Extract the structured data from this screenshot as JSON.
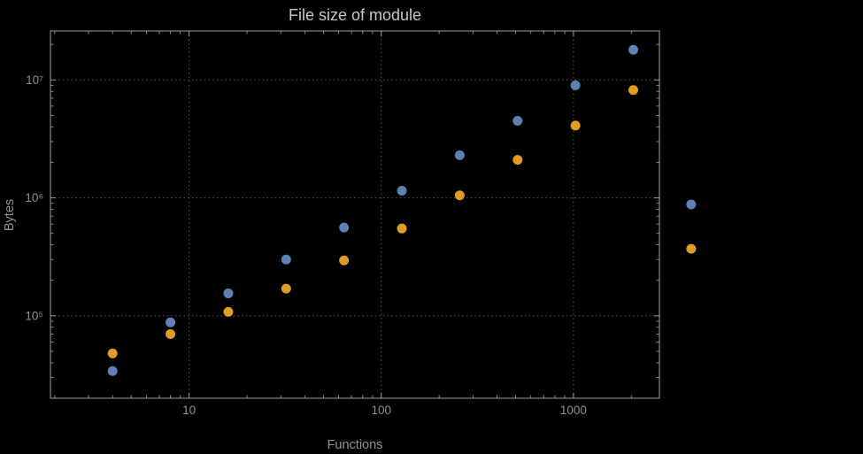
{
  "chart_data": {
    "type": "scatter",
    "title": "File size of module",
    "xlabel": "Functions",
    "ylabel": "Bytes",
    "x_scale": "log",
    "y_scale": "log",
    "x_range": [
      1.9,
      2800
    ],
    "y_range": [
      20000,
      26000000
    ],
    "grid": true,
    "legend": null,
    "x": [
      4,
      8,
      16,
      32,
      64,
      128,
      256,
      512,
      1024,
      2048,
      4096
    ],
    "series": [
      {
        "name": "series-blue",
        "color": "#5E81B5",
        "values": [
          34000,
          88000,
          155000,
          300000,
          560000,
          1150000,
          2300000,
          4500000,
          9000000,
          18000000,
          880000
        ]
      },
      {
        "name": "series-orange",
        "color": "#E09C24",
        "values": [
          48000,
          70000,
          108000,
          170000,
          295000,
          550000,
          1050000,
          2100000,
          4100000,
          8200000,
          370000
        ]
      }
    ],
    "x_ticks": [
      {
        "value": 10,
        "label": "10"
      },
      {
        "value": 100,
        "label": "100"
      },
      {
        "value": 1000,
        "label": "1000"
      }
    ],
    "y_ticks": [
      {
        "value": 100000,
        "label": "10⁵"
      },
      {
        "value": 1000000,
        "label": "10⁶"
      },
      {
        "value": 10000000,
        "label": "10⁷"
      }
    ]
  },
  "colors": {
    "background": "#000000",
    "frame": "#9e9e9e",
    "grid": "#5a5a5a",
    "title": "#c6c6c6",
    "labels": "#8f8f8f"
  }
}
